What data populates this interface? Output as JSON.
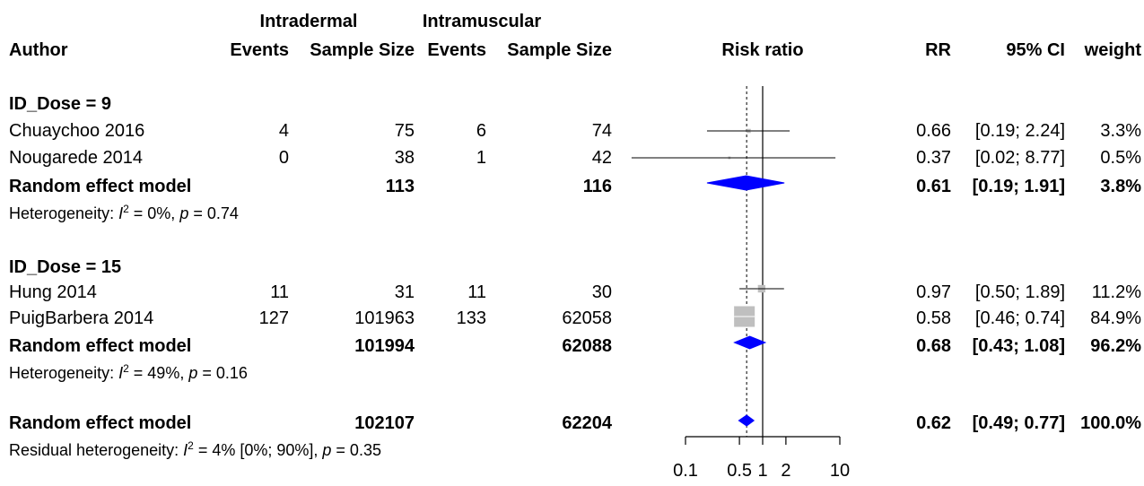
{
  "header": {
    "group1": "Intradermal",
    "group2": "Intramuscular",
    "author": "Author",
    "events1": "Events",
    "sample1": "Sample Size",
    "events2": "Events",
    "sample2": "Sample Size",
    "plot_title": "Risk ratio",
    "rr": "RR",
    "ci": "95% CI",
    "weight": "weight"
  },
  "subgroups": [
    {
      "label": "ID_Dose =  9",
      "studies": [
        {
          "author": "Chuaychoo 2016",
          "events_id": "4",
          "n_id": "75",
          "events_im": "6",
          "n_im": "74",
          "rr": "0.66",
          "ci": "[0.19; 2.24]",
          "weight": "3.3%"
        },
        {
          "author": "Nougarede 2014",
          "events_id": "0",
          "n_id": "38",
          "events_im": "1",
          "n_im": "42",
          "rr": "0.37",
          "ci": "[0.02; 8.77]",
          "weight": "0.5%"
        }
      ],
      "pooled": {
        "label": "Random effect model",
        "n_id": "113",
        "n_im": "116",
        "rr": "0.61",
        "ci": "[0.19; 1.91]",
        "weight": "3.8%"
      },
      "het_prefix": "Heterogeneity: ",
      "het_suffix": " = 0%, ",
      "het_p": " = 0.74"
    },
    {
      "label": "ID_Dose = 15",
      "studies": [
        {
          "author": "Hung 2014",
          "events_id": "11",
          "n_id": "31",
          "events_im": "11",
          "n_im": "30",
          "rr": "0.97",
          "ci": "[0.50; 1.89]",
          "weight": "11.2%"
        },
        {
          "author": "PuigBarbera 2014",
          "events_id": "127",
          "n_id": "101963",
          "events_im": "133",
          "n_im": "62058",
          "rr": "0.58",
          "ci": "[0.46; 0.74]",
          "weight": "84.9%"
        }
      ],
      "pooled": {
        "label": "Random effect model",
        "n_id": "101994",
        "n_im": "62088",
        "rr": "0.68",
        "ci": "[0.43; 1.08]",
        "weight": "96.2%"
      },
      "het_prefix": "Heterogeneity: ",
      "het_suffix": " = 49%, ",
      "het_p": " = 0.16"
    }
  ],
  "overall": {
    "label": "Random effect model",
    "n_id": "102107",
    "n_im": "62204",
    "rr": "0.62",
    "ci": "[0.49; 0.77]",
    "weight": "100.0%",
    "het_prefix": "Residual heterogeneity: ",
    "het_suffix": " = 4% [0%; 90%], ",
    "het_p": " = 0.35"
  },
  "symbols": {
    "i2_letter": "I",
    "i2_exp": "2",
    "p_letter": "p"
  },
  "chart_data": {
    "type": "forest",
    "x_scale": "log",
    "x_ticks": [
      0.1,
      0.5,
      1,
      2,
      10
    ],
    "x_tick_labels": [
      "0.1",
      "0.5",
      "1",
      "2",
      "10"
    ],
    "xlim": [
      0.1,
      10
    ],
    "reference_line": 1,
    "pooled_reference": 0.62,
    "studies": [
      {
        "name": "Chuaychoo 2016",
        "rr": 0.66,
        "lower": 0.19,
        "upper": 2.24,
        "weight": 3.3
      },
      {
        "name": "Nougarede 2014",
        "rr": 0.37,
        "lower": 0.02,
        "upper": 8.77,
        "weight": 0.5
      },
      {
        "name": "Hung 2014",
        "rr": 0.97,
        "lower": 0.5,
        "upper": 1.89,
        "weight": 11.2
      },
      {
        "name": "PuigBarbera 2014",
        "rr": 0.58,
        "lower": 0.46,
        "upper": 0.74,
        "weight": 84.9
      }
    ],
    "pooled": [
      {
        "name": "ID_Dose = 9",
        "rr": 0.61,
        "lower": 0.19,
        "upper": 1.91
      },
      {
        "name": "ID_Dose = 15",
        "rr": 0.68,
        "lower": 0.43,
        "upper": 1.08
      },
      {
        "name": "Overall",
        "rr": 0.62,
        "lower": 0.49,
        "upper": 0.77
      }
    ],
    "colors": {
      "diamond": "#0000ff",
      "square": "#bfbfbf",
      "line": "#000000"
    }
  }
}
